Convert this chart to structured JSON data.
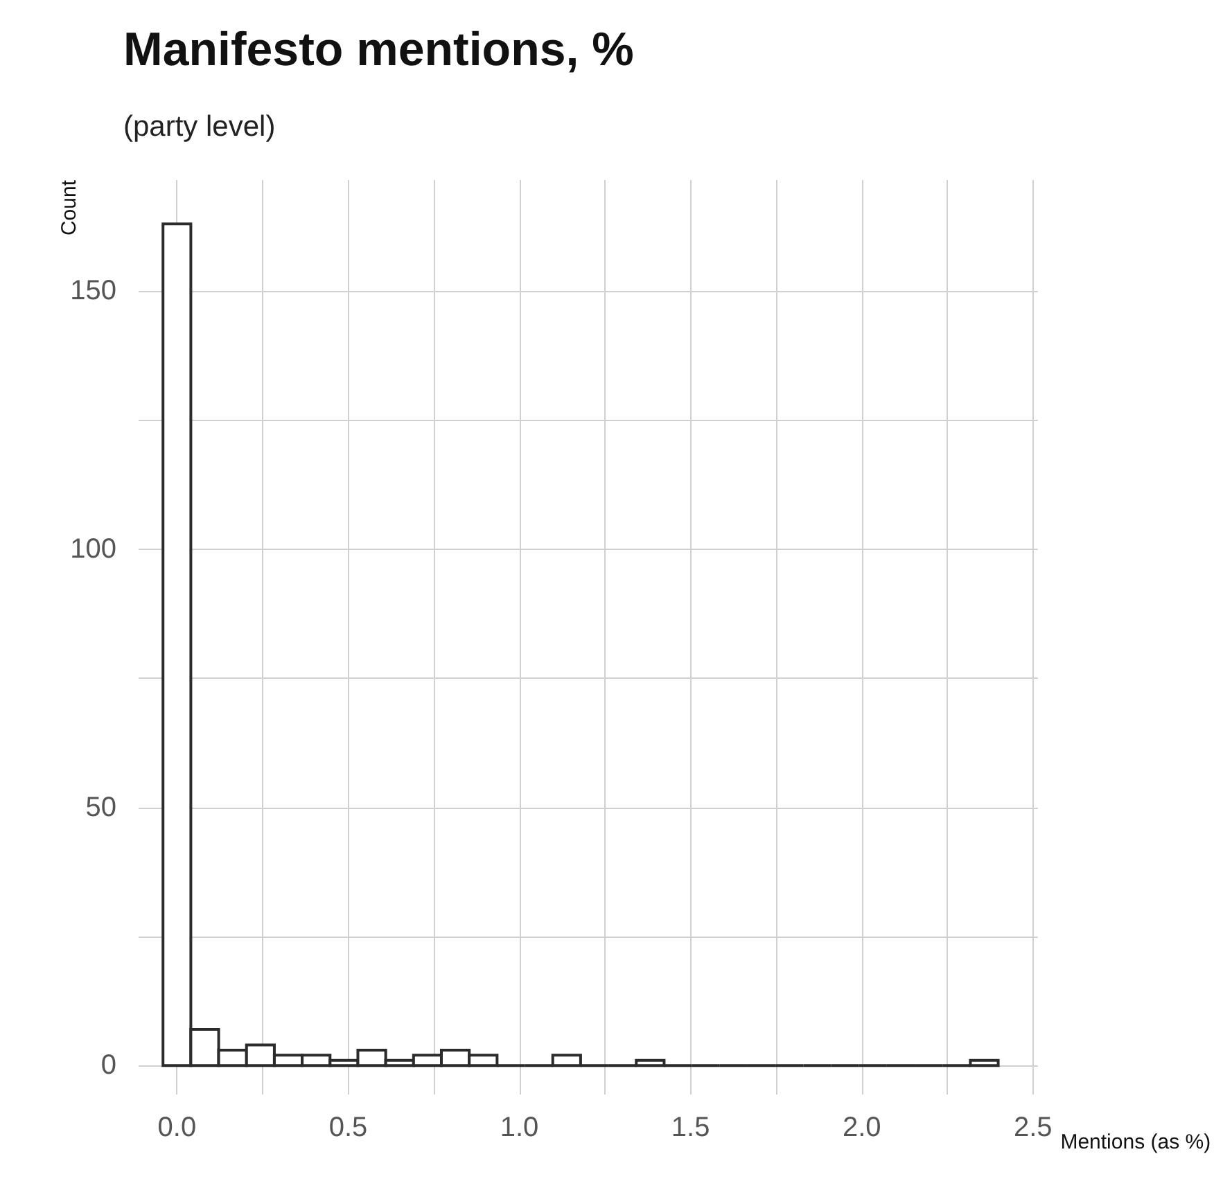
{
  "chart_data": {
    "type": "histogram",
    "title": "Manifesto mentions, %",
    "subtitle": "(party level)",
    "xlabel": "Mentions (as %)",
    "ylabel": "Count",
    "bins": [
      -0.0407,
      0.0406,
      0.1219,
      0.2032,
      0.2845,
      0.3658,
      0.4471,
      0.5284,
      0.6097,
      0.691,
      0.7723,
      0.8536,
      0.9349,
      1.0162,
      1.0975,
      1.1788,
      1.2601,
      1.3414,
      1.4227,
      1.504,
      1.5853,
      1.6666,
      1.7479,
      1.8292,
      1.9105,
      1.9918,
      2.0731,
      2.1544,
      2.2357,
      2.317,
      2.3983
    ],
    "values": [
      163,
      7,
      3,
      4,
      2,
      2,
      1,
      3,
      1,
      2,
      3,
      2,
      0,
      0,
      2,
      0,
      0,
      1,
      0,
      0,
      0,
      0,
      0,
      0,
      0,
      0,
      0,
      0,
      0,
      1
    ],
    "color": "#ffffff",
    "xlim": [
      -0.112,
      2.514
    ],
    "xticks": [
      {
        "value": 0,
        "label": "0.0"
      },
      {
        "value": 0.25,
        "label": null
      },
      0.5,
      {
        "value": 0.75,
        "label": null
      },
      {
        "value": 1,
        "label": "1.0"
      },
      {
        "value": 1.25,
        "label": null
      },
      1.5,
      {
        "value": 1.75,
        "label": null
      },
      {
        "value": 2,
        "label": "2.0"
      },
      {
        "value": 2.25,
        "label": null
      },
      2.5
    ],
    "ylim": [
      -5.6,
      171.5
    ],
    "yticks": [
      0,
      {
        "value": 25,
        "label": null
      },
      50,
      {
        "value": 75,
        "label": null
      },
      100,
      {
        "value": 125,
        "label": null
      },
      150
    ],
    "grid": true
  }
}
